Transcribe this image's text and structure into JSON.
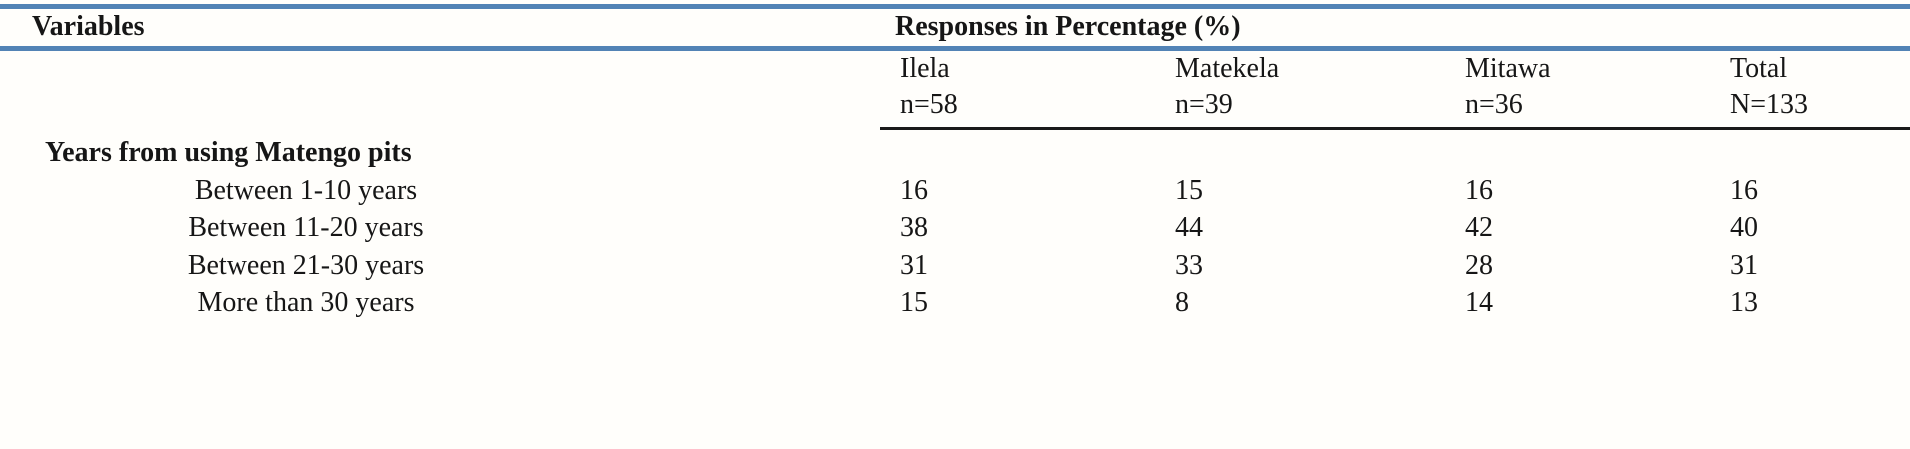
{
  "table": {
    "left_header": "Variables",
    "group_header": "Responses in Percentage (%)",
    "accent_color": "#5283b5",
    "columns": [
      {
        "name": "Ilela",
        "count": "n=58"
      },
      {
        "name": "Matekela",
        "count": "n=39"
      },
      {
        "name": "Mitawa",
        "count": "n=36"
      },
      {
        "name": "Total",
        "count": "N=133"
      }
    ],
    "section": "Years from using Matengo pits",
    "rows": [
      {
        "label": "Between 1-10 years",
        "values": [
          "16",
          "15",
          "16",
          "16"
        ]
      },
      {
        "label": "Between 11-20 years",
        "values": [
          "38",
          "44",
          "42",
          "40"
        ]
      },
      {
        "label": "Between 21-30 years",
        "values": [
          "31",
          "33",
          "28",
          "31"
        ]
      },
      {
        "label": "More than 30 years",
        "values": [
          "15",
          "8",
          "14",
          "13"
        ]
      }
    ]
  }
}
